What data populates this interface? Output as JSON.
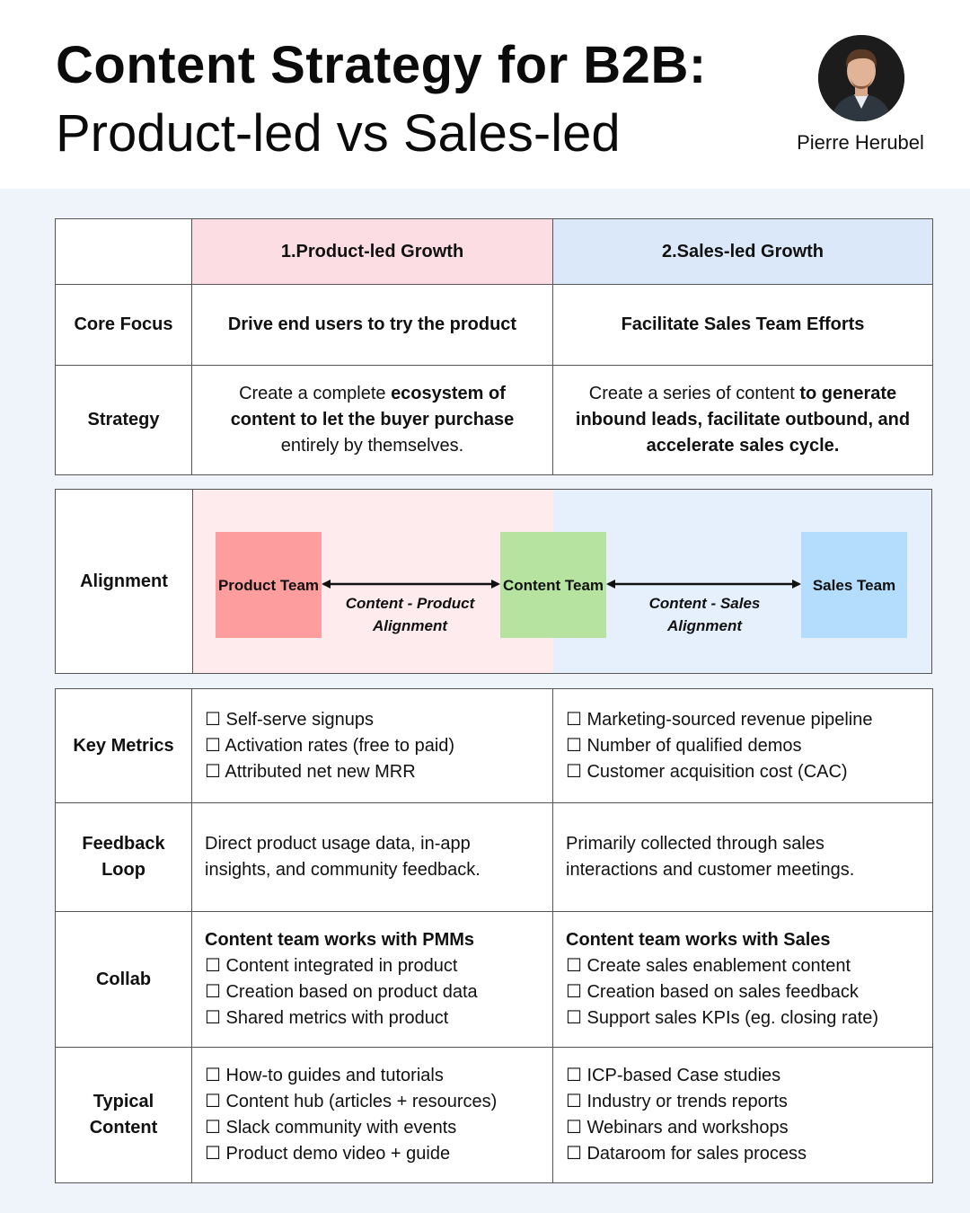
{
  "header": {
    "title_line1": "Content Strategy for B2B:",
    "title_line2": "Product-led vs Sales-led",
    "author": "Pierre Herubel"
  },
  "columns": {
    "product": "1.Product-led Growth",
    "sales": "2.Sales-led Growth"
  },
  "core_focus": {
    "label": "Core Focus",
    "product": "Drive end users to try the product",
    "sales": "Facilitate Sales Team Efforts"
  },
  "strategy": {
    "label": "Strategy",
    "product_pre": "Create a complete ",
    "product_bold": "ecosystem of content to let the buyer purchase",
    "product_post": " entirely by themselves.",
    "sales_pre": "Create a series of content ",
    "sales_bold": "to generate inbound leads, facilitate outbound, and accelerate sales cycle."
  },
  "alignment": {
    "label": "Alignment",
    "product_team": "Product Team",
    "content_team": "Content Team",
    "sales_team": "Sales Team",
    "left_arrow_label": "Content - Product Alignment",
    "right_arrow_label": "Content - Sales Alignment"
  },
  "key_metrics": {
    "label": "Key Metrics",
    "product": [
      "☐ Self-serve signups",
      "☐ Activation rates (free to paid)",
      "☐ Attributed net new MRR"
    ],
    "sales": [
      "☐ Marketing-sourced revenue pipeline",
      "☐ Number of qualified demos",
      "☐ Customer acquisition cost (CAC)"
    ]
  },
  "feedback_loop": {
    "label": "Feedback Loop",
    "product": "Direct product usage data, in-app insights, and community feedback.",
    "sales": "Primarily collected through sales interactions and customer meetings."
  },
  "collab": {
    "label": "Collab",
    "product_heading": "Content team works with PMMs",
    "product": [
      "☐ Content integrated in product",
      "☐ Creation based on product data",
      "☐ Shared metrics with product"
    ],
    "sales_heading": "Content team works with Sales",
    "sales": [
      "☐ Create sales enablement content",
      "☐ Creation based on sales feedback",
      "☐ Support sales KPIs (eg. closing rate)"
    ]
  },
  "typical_content": {
    "label": "Typical Content",
    "product": [
      "☐ How-to guides and tutorials",
      "☐ Content hub (articles + resources)",
      "☐ Slack community with events",
      "☐ Product demo video + guide"
    ],
    "sales": [
      "☐ ICP-based Case studies",
      "☐ Industry or trends reports",
      "☐ Webinars and workshops",
      "☐ Dataroom for sales process"
    ]
  },
  "colors": {
    "page_bg": "#eff4fb",
    "product_header": "#fbdde3",
    "sales_header": "#dbe8f9",
    "product_team": "#fd9d9d",
    "content_team": "#b6e3a0",
    "sales_team": "#b3dcfd"
  }
}
